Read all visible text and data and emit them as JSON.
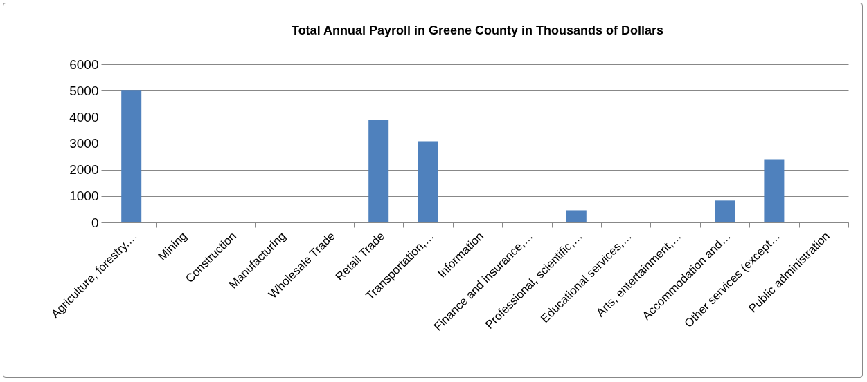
{
  "chart_data": {
    "type": "bar",
    "title": "Total Annual Payroll in Greene County in Thousands of Dollars",
    "categories": [
      "Agriculture, forestry,…",
      "Mining",
      "Construction",
      "Manufacturing",
      "Wholesale Trade",
      "Retail Trade",
      "Transportation,…",
      "Information",
      "Finance and insurance,…",
      "Professional, scientific,…",
      "Educational services,…",
      "Arts, entertainment,…",
      "Accommodation and…",
      "Other services (except…",
      "Public administration"
    ],
    "values": [
      5000,
      0,
      0,
      0,
      0,
      3880,
      3080,
      0,
      0,
      460,
      0,
      0,
      830,
      2400,
      0
    ],
    "color": "#4f81bd",
    "ylim": [
      0,
      6000
    ],
    "yticks": [
      0,
      1000,
      2000,
      3000,
      4000,
      5000,
      6000
    ],
    "grid": "y"
  }
}
